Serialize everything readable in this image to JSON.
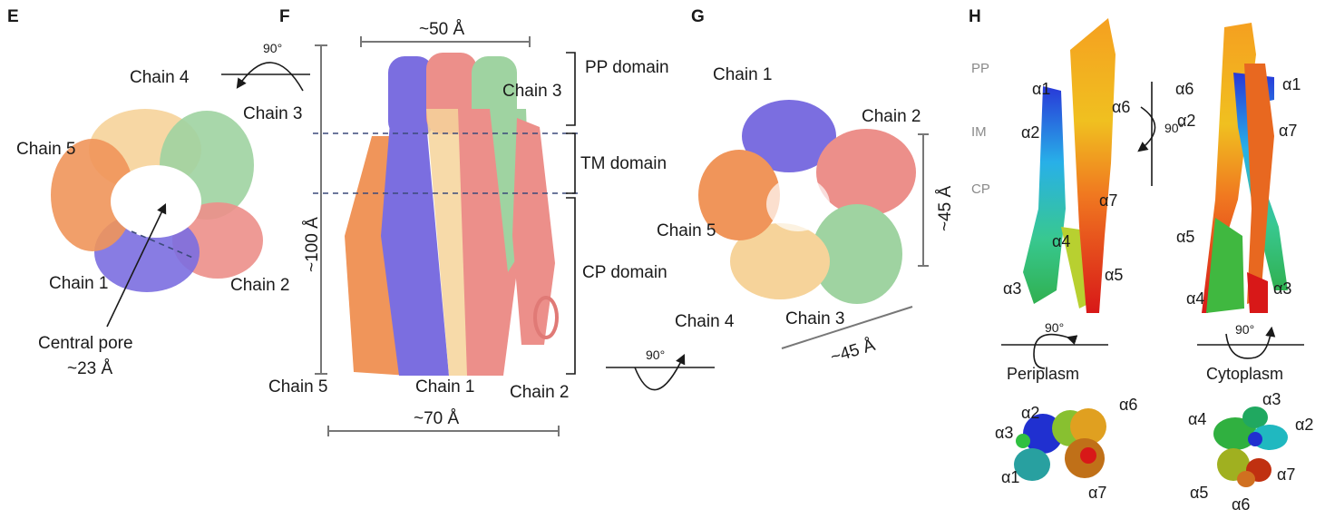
{
  "panels": {
    "E": {
      "letter": "E",
      "rotation": "90°",
      "chain_labels": [
        "Chain 4",
        "Chain 3",
        "Chain 5",
        "Chain 1",
        "Chain 2"
      ],
      "pore_label": "Central pore",
      "pore_size": "~23 Å",
      "chain_colors": {
        "chain1": "#7b6ee0",
        "chain2": "#ec8f8a",
        "chain3": "#9fd3a1",
        "chain4": "#f6d39a",
        "chain5": "#f0955a"
      }
    },
    "F": {
      "letter": "F",
      "top_width": "~50 Å",
      "height": "~100 Å",
      "bottom_width": "~70 Å",
      "domains": [
        "PP domain",
        "TM domain",
        "CP domain"
      ],
      "chain_labels": [
        "Chain 3",
        "Chain 5",
        "Chain 1",
        "Chain 2"
      ]
    },
    "G": {
      "letter": "G",
      "rotation": "90°",
      "height": "~45 Å",
      "width": "~45 Å",
      "chain_labels": [
        "Chain 1",
        "Chain 2",
        "Chain 5",
        "Chain 4",
        "Chain 3"
      ]
    },
    "H": {
      "letter": "H",
      "regions": [
        "PP",
        "IM",
        "CP"
      ],
      "rotation": "90°",
      "left_helices": [
        "α1",
        "α2",
        "α6",
        "α7",
        "α4",
        "α5",
        "α3"
      ],
      "right_helices": [
        "α6",
        "α1",
        "α2",
        "α7",
        "α5",
        "α4",
        "α3"
      ],
      "periplasm_label": "Periplasm",
      "cytoplasm_label": "Cytoplasm",
      "peri_view_helices": [
        "α2",
        "α6",
        "α3",
        "α1",
        "α7"
      ],
      "cyto_view_helices": [
        "α3",
        "α4",
        "α2",
        "α5",
        "α7",
        "α6"
      ]
    }
  }
}
